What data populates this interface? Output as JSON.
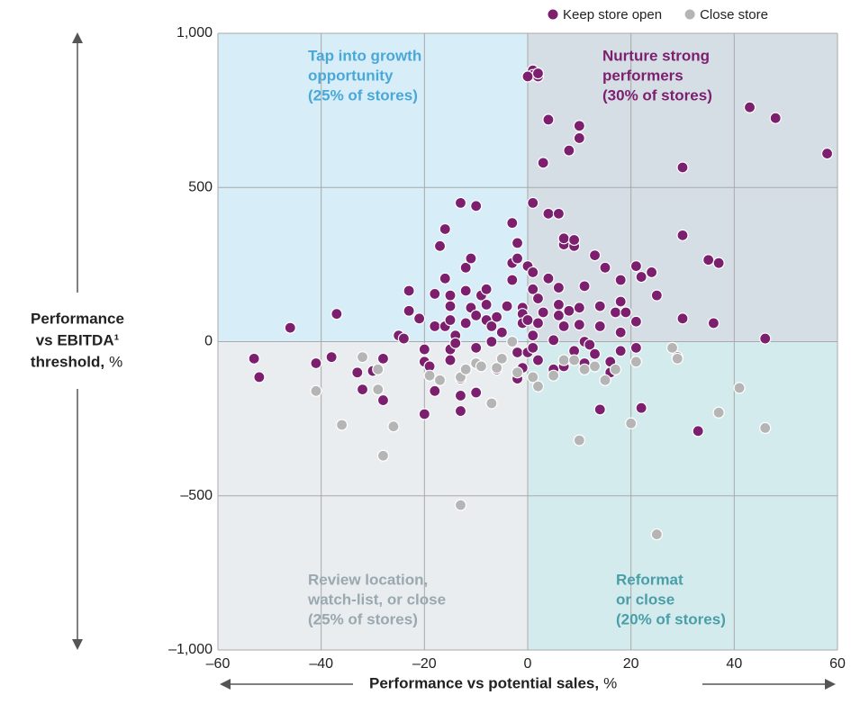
{
  "chart_data": {
    "type": "scatter",
    "x_label": {
      "bold": "Performance vs potential sales,",
      "unit": "%"
    },
    "y_label": {
      "lines": [
        "Performance",
        "vs EBITDA¹",
        "threshold,"
      ],
      "unit": "%"
    },
    "xlim": [
      -60,
      60
    ],
    "ylim": [
      -1000,
      1000
    ],
    "xticks": [
      {
        "value": -60,
        "label": "–60"
      },
      {
        "value": -40,
        "label": "–40"
      },
      {
        "value": -20,
        "label": "–20"
      },
      0,
      20,
      40,
      60
    ],
    "yticks": [
      {
        "value": -1000,
        "label": "–1,000"
      },
      {
        "value": -500,
        "label": "–500"
      },
      0,
      500,
      {
        "value": 1000,
        "label": "1,000"
      }
    ],
    "grid": true,
    "legend": "top-right",
    "quadrants": [
      {
        "lines": [
          "Tap into growth",
          "opportunity",
          "(25% of stores)"
        ],
        "color": "#4aa8d8",
        "fill": "#d7edf7",
        "position": "top-left"
      },
      {
        "lines": [
          "Nurture strong",
          "performers",
          "(30% of stores)"
        ],
        "color": "#7b1f6e",
        "fill": "#d6dee5",
        "position": "top-right"
      },
      {
        "lines": [
          "Review location,",
          "watch-list, or close",
          "(25% of stores)"
        ],
        "color": "#9aa8b0",
        "fill": "#e9edf0",
        "position": "bottom-left"
      },
      {
        "lines": [
          "Reformat",
          "or close",
          "(20% of stores)"
        ],
        "color": "#4a9ea8",
        "fill": "#d4ebee",
        "position": "bottom-right"
      }
    ],
    "series": [
      {
        "name": "Keep store open",
        "color": "#7b1f6e",
        "x": [
          -53,
          -52,
          -46,
          -37,
          -41,
          -38,
          -33,
          -32,
          -30,
          -28,
          -28,
          -25,
          -24,
          -23,
          -23,
          -21,
          -20,
          -20,
          -20,
          -19,
          -19,
          -18,
          -18,
          -18,
          -17,
          -16,
          -16,
          -16,
          -15,
          -15,
          -15,
          -15,
          -15,
          -14,
          -14,
          -13,
          -13,
          -13,
          -13,
          -12,
          -12,
          -12,
          -11,
          -11,
          -10,
          -10,
          -10,
          -10,
          -9,
          -8,
          -8,
          -8,
          -7,
          -7,
          -6,
          -6,
          -5,
          -4,
          -3,
          -3,
          -3,
          -2,
          -2,
          -2,
          -2,
          -1,
          -1,
          -1,
          -1,
          0,
          0,
          0,
          1,
          1,
          1,
          1,
          1,
          1,
          1,
          2,
          2,
          2,
          2,
          3,
          3,
          4,
          4,
          4,
          5,
          5,
          6,
          6,
          6,
          6,
          7,
          7,
          7,
          7,
          8,
          8,
          9,
          9,
          9,
          10,
          10,
          10,
          10,
          11,
          11,
          11,
          12,
          13,
          13,
          14,
          14,
          14,
          15,
          16,
          16,
          17,
          18,
          18,
          18,
          18,
          19,
          21,
          21,
          21,
          22,
          22,
          24,
          25,
          29,
          30,
          30,
          30,
          33,
          35,
          36,
          37,
          43,
          46,
          48,
          58,
          0,
          2
        ],
        "values": [
          -55,
          -115,
          45,
          90,
          -70,
          -50,
          -100,
          -155,
          -95,
          -190,
          -55,
          20,
          10,
          165,
          100,
          75,
          -25,
          -65,
          -235,
          -110,
          -80,
          50,
          155,
          -160,
          310,
          365,
          205,
          50,
          150,
          115,
          70,
          -25,
          -60,
          20,
          -5,
          -120,
          -175,
          -225,
          450,
          165,
          240,
          60,
          270,
          110,
          440,
          -165,
          -20,
          85,
          150,
          170,
          120,
          70,
          50,
          0,
          -90,
          80,
          30,
          115,
          385,
          255,
          200,
          320,
          270,
          -35,
          -120,
          110,
          90,
          60,
          -85,
          245,
          70,
          -35,
          880,
          865,
          450,
          225,
          170,
          20,
          -20,
          860,
          140,
          60,
          -60,
          580,
          95,
          415,
          720,
          205,
          5,
          -90,
          415,
          175,
          120,
          85,
          315,
          335,
          50,
          -80,
          620,
          100,
          310,
          330,
          -30,
          660,
          700,
          110,
          55,
          180,
          0,
          -70,
          -10,
          280,
          -40,
          115,
          50,
          -220,
          240,
          -65,
          -100,
          95,
          200,
          130,
          30,
          -30,
          95,
          245,
          65,
          -20,
          210,
          -215,
          225,
          150,
          -50,
          565,
          345,
          75,
          -290,
          265,
          60,
          255,
          760,
          10,
          725,
          610,
          860,
          870
        ]
      },
      {
        "name": "Close store",
        "color": "#b5b5b5",
        "x": [
          -41,
          -36,
          -32,
          -29,
          -29,
          -28,
          -26,
          -19,
          -17,
          -13,
          -13,
          -12,
          -10,
          -9,
          -7,
          -6,
          -5,
          -2,
          1,
          2,
          5,
          7,
          9,
          10,
          11,
          13,
          15,
          17,
          20,
          21,
          25,
          28,
          29,
          37,
          41,
          46,
          -3
        ],
        "values": [
          -160,
          -270,
          -50,
          -90,
          -155,
          -370,
          -275,
          -110,
          -125,
          -115,
          -530,
          -90,
          -70,
          -80,
          -200,
          -85,
          -55,
          -100,
          -115,
          -145,
          -110,
          -60,
          -60,
          -320,
          -90,
          -80,
          -125,
          -90,
          -265,
          -65,
          -625,
          -20,
          -55,
          -230,
          -150,
          -280,
          0
        ]
      }
    ]
  }
}
